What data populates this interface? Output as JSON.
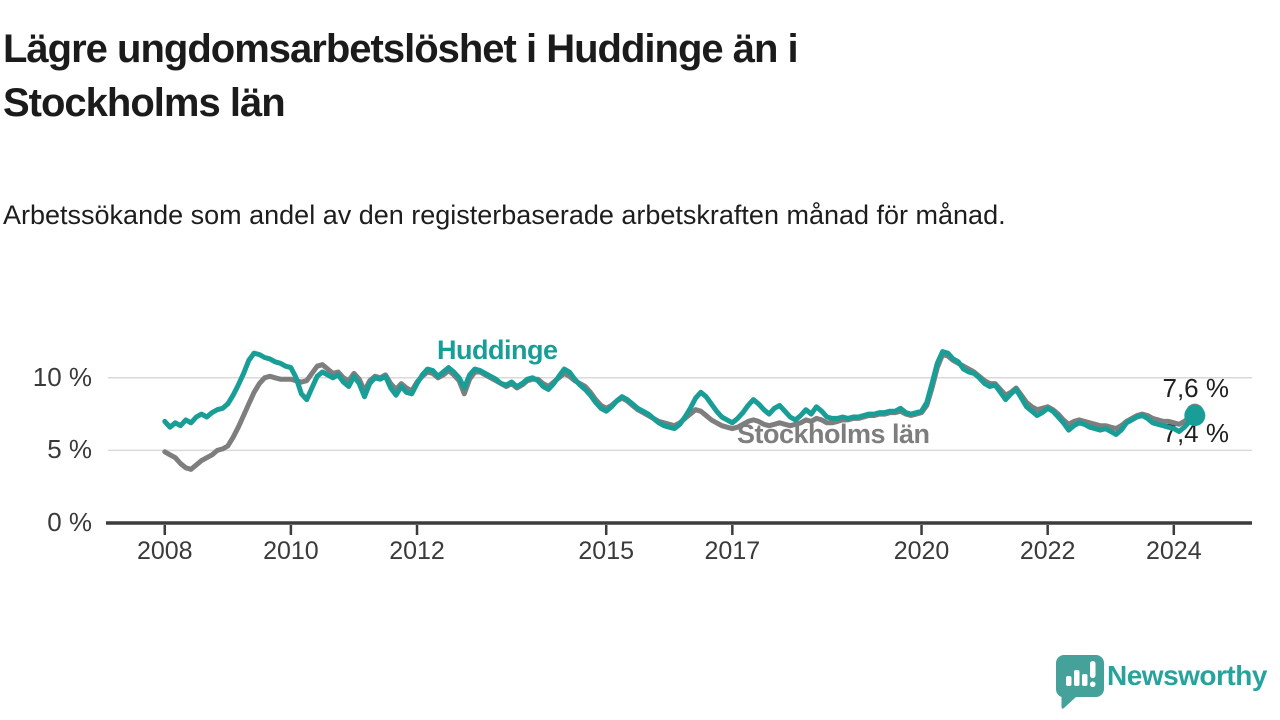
{
  "header": {
    "title": "Lägre ungdomsarbetslöshet i Huddinge än i Stockholms län",
    "subtitle": "Arbetssökande som andel av den registerbaserade arbetskraften månad för månad."
  },
  "chart_data": {
    "type": "line",
    "x_start_year": 2008,
    "x_step_months": 1,
    "xlim": [
      2007.1,
      2025.24
    ],
    "ylim": [
      0,
      12.74
    ],
    "grid": "horizontal",
    "x_ticks": [
      "2008",
      "2010",
      "2012",
      "2015",
      "2017",
      "2020",
      "2022",
      "2024"
    ],
    "x_tick_years": [
      2008,
      2010,
      2012,
      2015,
      2017,
      2020,
      2022,
      2024
    ],
    "y_ticks": [
      {
        "value": 0,
        "label": "0 %"
      },
      {
        "value": 5,
        "label": "5 %"
      },
      {
        "value": 10,
        "label": "10 %"
      }
    ],
    "end_labels": {
      "top": "7,6 %",
      "bottom": "7,4 %"
    },
    "series": [
      {
        "name": "Stockholms län",
        "color": "#7e7e7e",
        "final_value": 7.6,
        "values": [
          4.9,
          4.7,
          4.5,
          4.1,
          3.8,
          3.7,
          4.0,
          4.3,
          4.5,
          4.7,
          5.0,
          5.1,
          5.3,
          5.9,
          6.6,
          7.4,
          8.2,
          9.0,
          9.6,
          10.0,
          10.1,
          10.0,
          9.9,
          9.9,
          9.9,
          9.8,
          9.7,
          9.8,
          10.3,
          10.8,
          10.9,
          10.6,
          10.3,
          10.4,
          10.0,
          9.8,
          10.3,
          9.9,
          9.1,
          9.8,
          10.1,
          10.0,
          10.2,
          9.6,
          9.2,
          9.6,
          9.3,
          9.1,
          9.7,
          10.1,
          10.4,
          10.3,
          10.0,
          10.2,
          10.5,
          10.2,
          9.8,
          8.9,
          9.9,
          10.4,
          10.4,
          10.2,
          10.0,
          9.8,
          9.6,
          9.4,
          9.6,
          9.3,
          9.5,
          9.8,
          9.9,
          9.9,
          9.6,
          9.4,
          9.7,
          10.0,
          10.3,
          10.1,
          9.8,
          9.6,
          9.4,
          9.0,
          8.5,
          8.1,
          7.9,
          8.1,
          8.4,
          8.6,
          8.4,
          8.1,
          7.8,
          7.6,
          7.4,
          7.2,
          7.0,
          6.9,
          6.8,
          6.7,
          6.9,
          7.2,
          7.5,
          7.8,
          7.7,
          7.4,
          7.1,
          6.9,
          6.7,
          6.6,
          6.5,
          6.6,
          6.8,
          7.0,
          7.1,
          7.0,
          6.8,
          6.7,
          6.8,
          6.9,
          6.8,
          6.7,
          6.8,
          6.9,
          7.1,
          7.0,
          7.2,
          7.1,
          6.9,
          6.9,
          7.0,
          7.1,
          7.1,
          7.2,
          7.2,
          7.3,
          7.4,
          7.4,
          7.5,
          7.5,
          7.6,
          7.6,
          7.7,
          7.5,
          7.4,
          7.5,
          7.6,
          8.1,
          9.3,
          10.7,
          11.6,
          11.5,
          11.2,
          11.0,
          10.8,
          10.6,
          10.4,
          10.1,
          9.8,
          9.6,
          9.6,
          9.2,
          8.8,
          9.0,
          9.3,
          8.8,
          8.3,
          8.0,
          7.8,
          7.9,
          8.0,
          7.8,
          7.5,
          7.1,
          6.8,
          7.0,
          7.1,
          7.0,
          6.9,
          6.8,
          6.7,
          6.7,
          6.6,
          6.5,
          6.7,
          7.0,
          7.2,
          7.4,
          7.5,
          7.4,
          7.2,
          7.1,
          7.0,
          7.0,
          6.9,
          6.8,
          7.0,
          7.3,
          7.6
        ]
      },
      {
        "name": "Huddinge",
        "color": "#189e96",
        "final_value": 7.4,
        "values": [
          7.0,
          6.6,
          6.9,
          6.7,
          7.1,
          6.9,
          7.3,
          7.5,
          7.3,
          7.6,
          7.8,
          7.9,
          8.2,
          8.8,
          9.5,
          10.3,
          11.2,
          11.7,
          11.6,
          11.4,
          11.3,
          11.1,
          11.0,
          10.8,
          10.7,
          10.0,
          8.9,
          8.5,
          9.3,
          10.1,
          10.4,
          10.2,
          10.0,
          10.2,
          9.7,
          9.4,
          10.1,
          9.6,
          8.7,
          9.6,
          10.0,
          9.9,
          10.1,
          9.3,
          8.8,
          9.4,
          9.0,
          8.9,
          9.6,
          10.2,
          10.6,
          10.5,
          10.1,
          10.4,
          10.7,
          10.4,
          10.0,
          9.3,
          10.2,
          10.6,
          10.5,
          10.3,
          10.1,
          9.9,
          9.6,
          9.5,
          9.7,
          9.4,
          9.6,
          9.9,
          10.0,
          9.8,
          9.4,
          9.2,
          9.6,
          10.1,
          10.6,
          10.4,
          9.9,
          9.5,
          9.2,
          8.8,
          8.3,
          7.9,
          7.7,
          8.0,
          8.4,
          8.7,
          8.5,
          8.2,
          7.9,
          7.7,
          7.5,
          7.2,
          6.9,
          6.7,
          6.6,
          6.5,
          6.8,
          7.3,
          7.9,
          8.6,
          9.0,
          8.7,
          8.2,
          7.7,
          7.3,
          7.1,
          6.9,
          7.2,
          7.6,
          8.1,
          8.5,
          8.2,
          7.8,
          7.5,
          7.9,
          8.1,
          7.7,
          7.3,
          7.1,
          7.4,
          7.8,
          7.5,
          8.0,
          7.7,
          7.3,
          7.2,
          7.2,
          7.3,
          7.2,
          7.3,
          7.3,
          7.4,
          7.5,
          7.5,
          7.6,
          7.6,
          7.7,
          7.7,
          7.9,
          7.6,
          7.5,
          7.6,
          7.7,
          8.3,
          9.6,
          11.0,
          11.8,
          11.7,
          11.3,
          11.1,
          10.6,
          10.4,
          10.3,
          10.0,
          9.6,
          9.4,
          9.5,
          9.0,
          8.5,
          8.9,
          9.2,
          8.6,
          8.0,
          7.7,
          7.4,
          7.6,
          7.9,
          7.7,
          7.3,
          6.9,
          6.4,
          6.7,
          6.9,
          6.8,
          6.6,
          6.5,
          6.4,
          6.5,
          6.3,
          6.1,
          6.4,
          6.9,
          7.1,
          7.3,
          7.4,
          7.2,
          6.9,
          6.8,
          6.7,
          6.6,
          6.5,
          6.3,
          6.6,
          7.0,
          7.4
        ]
      }
    ],
    "colors": {
      "huddinge": "#189e96",
      "stockholm": "#7e7e7e",
      "grid": "#d9d9d9",
      "axis": "#3c3c3c"
    }
  },
  "footer": {
    "brand": "Newsworthy",
    "brand_color": "#26a39c"
  }
}
